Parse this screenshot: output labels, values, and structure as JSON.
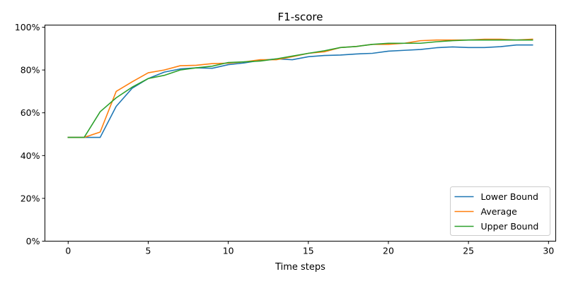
{
  "chart_data": {
    "type": "line",
    "title": "F1-score",
    "xlabel": "Time steps",
    "ylabel": "",
    "xlim": [
      -1.45,
      30.45
    ],
    "ylim": [
      0,
      1.01
    ],
    "xticks": [
      0,
      5,
      10,
      15,
      20,
      25,
      30
    ],
    "xtick_labels": [
      "0",
      "5",
      "10",
      "15",
      "20",
      "25",
      "30"
    ],
    "yticks": [
      0,
      0.2,
      0.4,
      0.6,
      0.8,
      1.0
    ],
    "ytick_labels": [
      "0%",
      "20%",
      "40%",
      "60%",
      "80%",
      "100%"
    ],
    "grid": false,
    "legend_position": "lower-right",
    "x": [
      0,
      1,
      2,
      3,
      4,
      5,
      6,
      7,
      8,
      9,
      10,
      11,
      12,
      13,
      14,
      15,
      16,
      17,
      18,
      19,
      20,
      21,
      22,
      23,
      24,
      25,
      26,
      27,
      28,
      29
    ],
    "series": [
      {
        "name": "Lower Bound",
        "color": "#1f77b4",
        "values": [
          0.485,
          0.485,
          0.485,
          0.63,
          0.715,
          0.76,
          0.79,
          0.805,
          0.81,
          0.808,
          0.825,
          0.833,
          0.845,
          0.852,
          0.848,
          0.862,
          0.868,
          0.87,
          0.875,
          0.878,
          0.888,
          0.892,
          0.896,
          0.904,
          0.908,
          0.905,
          0.905,
          0.909,
          0.917,
          0.917
        ]
      },
      {
        "name": "Average",
        "color": "#ff7f0e",
        "values": [
          0.485,
          0.485,
          0.51,
          0.7,
          0.745,
          0.787,
          0.8,
          0.82,
          0.822,
          0.83,
          0.832,
          0.838,
          0.848,
          0.848,
          0.862,
          0.878,
          0.885,
          0.905,
          0.91,
          0.92,
          0.92,
          0.925,
          0.937,
          0.94,
          0.94,
          0.94,
          0.944,
          0.944,
          0.94,
          0.944
        ]
      },
      {
        "name": "Upper Bound",
        "color": "#2ca02c",
        "values": [
          0.485,
          0.485,
          0.605,
          0.67,
          0.72,
          0.76,
          0.775,
          0.8,
          0.81,
          0.818,
          0.835,
          0.838,
          0.842,
          0.852,
          0.865,
          0.878,
          0.89,
          0.905,
          0.91,
          0.92,
          0.925,
          0.925,
          0.925,
          0.932,
          0.937,
          0.94,
          0.94,
          0.94,
          0.94,
          0.94
        ]
      }
    ]
  }
}
